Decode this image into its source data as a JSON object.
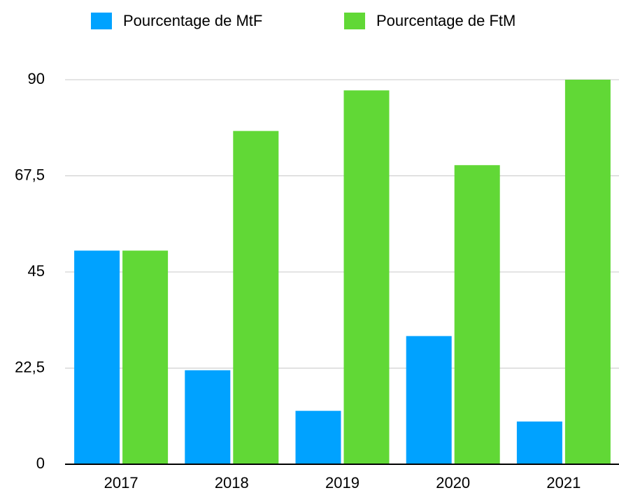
{
  "chart_data": {
    "type": "bar",
    "categories": [
      "2017",
      "2018",
      "2019",
      "2020",
      "2021"
    ],
    "series": [
      {
        "name": "Pourcentage de MtF",
        "color": "#00a2ff",
        "values": [
          50,
          22,
          12.5,
          30,
          10
        ]
      },
      {
        "name": "Pourcentage de FtM",
        "color": "#61d836",
        "values": [
          50,
          78,
          87.5,
          70,
          90
        ]
      }
    ],
    "ylim": [
      0,
      90
    ],
    "yticks": [
      0,
      {
        "value": 22.5,
        "label": "22,5"
      },
      45,
      {
        "value": 67.5,
        "label": "67,5"
      },
      90
    ],
    "grid": true,
    "legend": "top"
  }
}
